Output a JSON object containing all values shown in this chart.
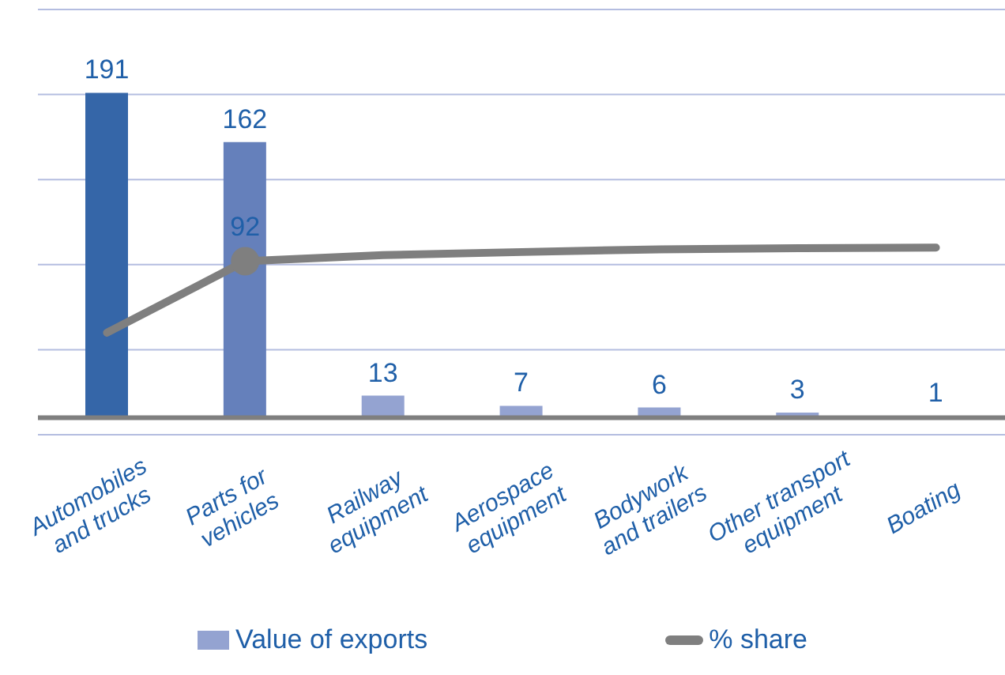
{
  "chart_data": {
    "type": "bar",
    "categories": [
      "Automobiles\nand trucks",
      "Parts for\nvehicles",
      "Railway\nequipment",
      "Aerospace\nequipment",
      "Bodywork\nand trailers",
      "Other transport\nequipment",
      "Boating"
    ],
    "series": [
      {
        "name": "Value of exports",
        "color": "#94a3d1",
        "colors": [
          "#3566a8",
          "#6580bb",
          "#94a3d1",
          "#94a3d1",
          "#94a3d1",
          "#94a3d1",
          "#94a3d1"
        ],
        "values": [
          191,
          162,
          13,
          7,
          6,
          3,
          1
        ],
        "value_labels": [
          "191",
          "162",
          "13",
          "7",
          "6",
          "3",
          "1"
        ]
      },
      {
        "name": "% share",
        "type": "line",
        "color": "#7f7f7f",
        "values": [
          50,
          92,
          95.6,
          97.4,
          99,
          99.7,
          100
        ],
        "value_labels": [
          null,
          "92",
          null,
          null,
          null,
          null,
          null
        ]
      }
    ],
    "ylim": [
      -10,
      240
    ],
    "yticks": [
      {
        "value": -10,
        "label": null
      },
      {
        "value": 40,
        "label": null
      },
      {
        "value": 90,
        "label": null
      },
      {
        "value": 140,
        "label": null
      },
      {
        "value": 190,
        "label": null
      },
      {
        "value": 240,
        "label": null
      }
    ],
    "tick_labels": "x",
    "grid": "y",
    "legend": "bottom",
    "ref_lines": [
      {
        "axis": "y",
        "value": 0,
        "color": "#7f7f7f"
      }
    ]
  }
}
